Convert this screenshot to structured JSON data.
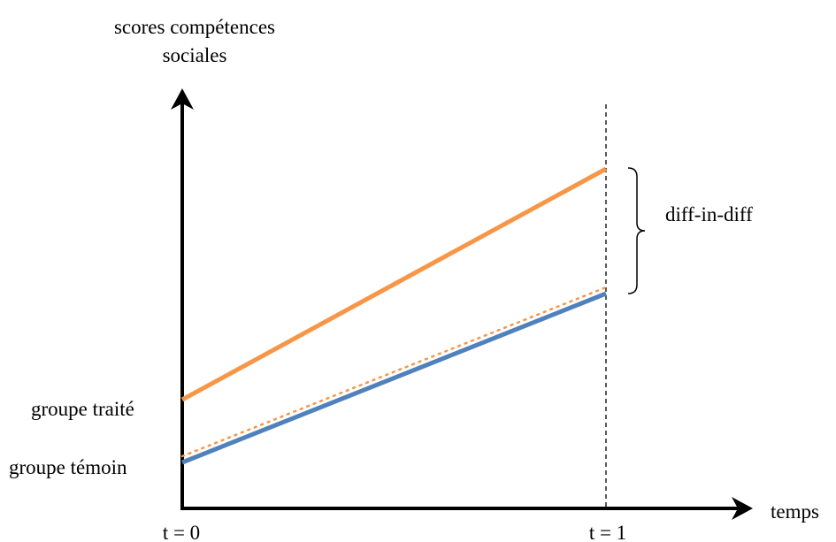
{
  "y_axis": {
    "label_line1": "scores compétences",
    "label_line2": "sociales"
  },
  "x_axis": {
    "label": "temps",
    "tick_t0": "t = 0",
    "tick_t1": "t = 1"
  },
  "groups": {
    "treated_label": "groupe traité",
    "control_label": "groupe témoin"
  },
  "annotation": {
    "brace_label": "diff-in-diff"
  },
  "colors": {
    "treated": "#F79646",
    "control": "#4F81BD",
    "axis": "#000000"
  }
}
